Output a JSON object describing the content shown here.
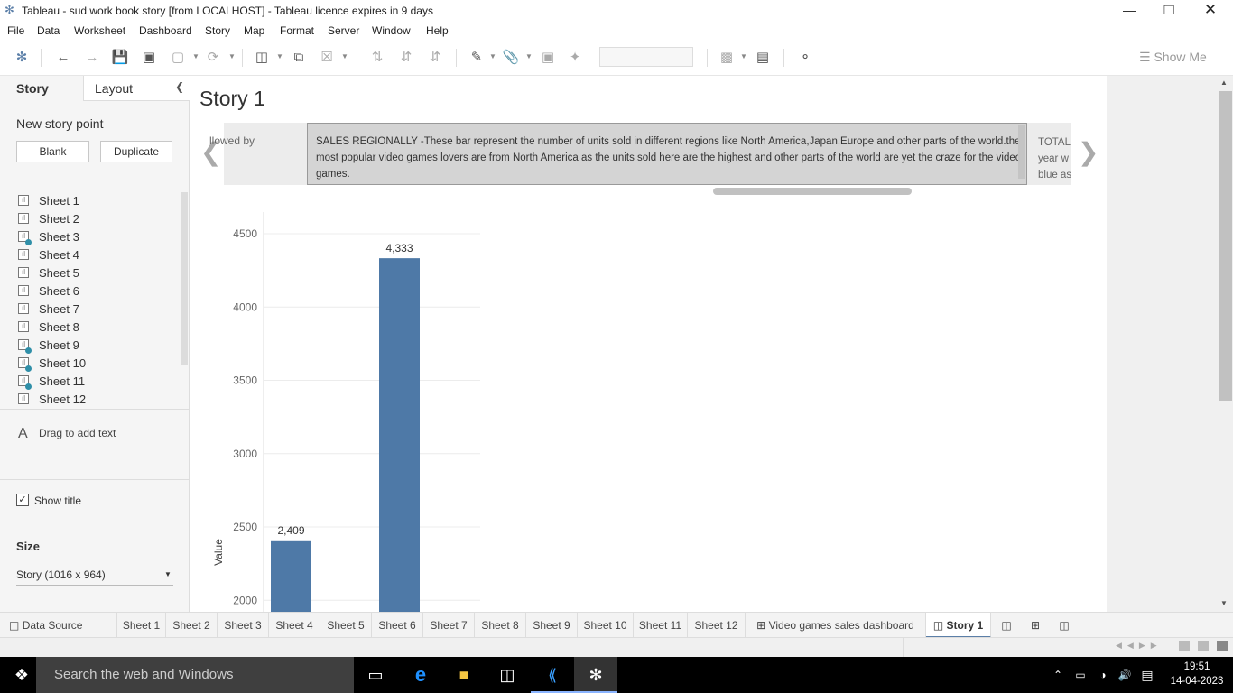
{
  "window": {
    "title": "Tableau - sud work book story [from LOCALHOST] - Tableau licence expires in 9 days",
    "min_icon": "minimize-icon",
    "max_icon": "restore-icon",
    "close_icon": "close-icon"
  },
  "menu": [
    "File",
    "Data",
    "Worksheet",
    "Dashboard",
    "Story",
    "Map",
    "Format",
    "Server",
    "Window",
    "Help"
  ],
  "toolbar": {
    "show_me": "Show Me"
  },
  "left_panel": {
    "tabs": [
      "Story",
      "Layout"
    ],
    "new_story_point": "New story point",
    "blank_button": "Blank",
    "duplicate_button": "Duplicate",
    "sheets": [
      {
        "name": "Sheet 1",
        "used": false
      },
      {
        "name": "Sheet 2",
        "used": false
      },
      {
        "name": "Sheet 3",
        "used": true
      },
      {
        "name": "Sheet 4",
        "used": false
      },
      {
        "name": "Sheet 5",
        "used": false
      },
      {
        "name": "Sheet 6",
        "used": false
      },
      {
        "name": "Sheet 7",
        "used": false
      },
      {
        "name": "Sheet 8",
        "used": false
      },
      {
        "name": "Sheet 9",
        "used": true
      },
      {
        "name": "Sheet 10",
        "used": true
      },
      {
        "name": "Sheet 11",
        "used": true
      },
      {
        "name": "Sheet 12",
        "used": false
      }
    ],
    "drag_to_add_text": "Drag to add text",
    "show_title": "Show title",
    "show_title_checked": true,
    "size_label": "Size",
    "size_value": "Story (1016 x 964)"
  },
  "story": {
    "title": "Story 1",
    "prev_point_fragment": "llowed by",
    "current_point": "SALES REGIONALLY -These bar represent the number of units sold in different regions like North America,Japan,Europe and other parts of the world.the most popular video games lovers are from North America as the units sold here are the highest and other parts of the world are yet the craze for the video games.",
    "next_point_fragment": "TOTAL year w blue as"
  },
  "chart_data": {
    "type": "bar",
    "ylabel": "Value",
    "ylim": [
      1950,
      4600
    ],
    "y_ticks": [
      4500,
      4000,
      3500,
      3000,
      2500,
      2000
    ],
    "values": [
      2409,
      4333
    ],
    "value_labels": [
      "2,409",
      "4,333"
    ],
    "color": "#4e79a7"
  },
  "sheet_tabs": {
    "data_source": "Data Source",
    "sheets": [
      "Sheet 1",
      "Sheet 2",
      "Sheet 3",
      "Sheet 4",
      "Sheet 5",
      "Sheet 6",
      "Sheet 7",
      "Sheet 8",
      "Sheet 9",
      "Sheet 10",
      "Sheet 11",
      "Sheet 12"
    ],
    "dashboard": "Video  games sales dashboard",
    "story": "Story 1"
  },
  "taskbar": {
    "search_placeholder": "Search the web and Windows",
    "time": "19:51",
    "date": "14-04-2023"
  }
}
